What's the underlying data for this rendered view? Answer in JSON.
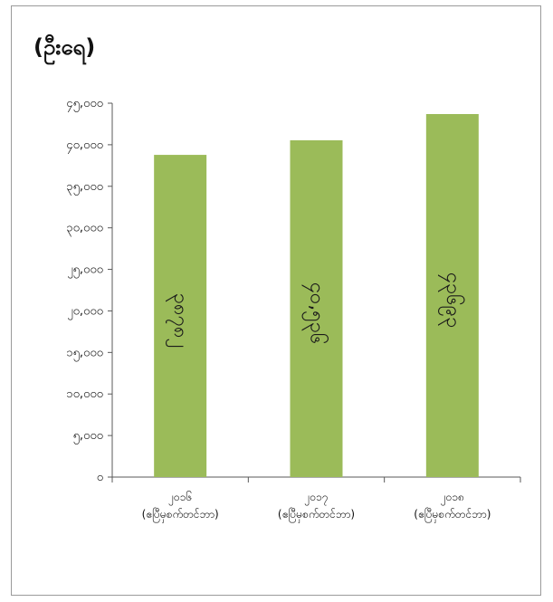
{
  "chart_data": {
    "type": "bar",
    "unit_label": "(ဦးရေ)",
    "categories": [
      [
        "၂၀၁၆",
        "(ဧပြီမှစက်တင်ဘာ)"
      ],
      [
        "၂၀၁၇",
        "(ဧပြီမှစက်တင်ဘာ)"
      ],
      [
        "၂၀၁၈",
        "(ဧပြီမှစက်တင်ဘာ)"
      ]
    ],
    "values": [
      38782,
      40536,
      43693
    ],
    "data_labels": [
      "၃၈၇၈၂",
      "၄၀,၅၃၆",
      "၄၃၆၉၃"
    ],
    "ylim": [
      0,
      45000
    ],
    "yticks": [
      {
        "v": 0,
        "label": "၀"
      },
      {
        "v": 5000,
        "label": "၅,၀၀၀"
      },
      {
        "v": 10000,
        "label": "၁၀,၀၀၀"
      },
      {
        "v": 15000,
        "label": "၁၅,၀၀၀"
      },
      {
        "v": 20000,
        "label": "၂၀,၀၀၀"
      },
      {
        "v": 25000,
        "label": "၂၅,၀၀၀"
      },
      {
        "v": 30000,
        "label": "၃၀,၀၀၀"
      },
      {
        "v": 35000,
        "label": "၃၅,၀၀၀"
      },
      {
        "v": 40000,
        "label": "၄၀,၀၀၀"
      },
      {
        "v": 45000,
        "label": "၄၅,၀၀၀"
      }
    ],
    "bar_color": "#9bbb59",
    "grid": false
  }
}
